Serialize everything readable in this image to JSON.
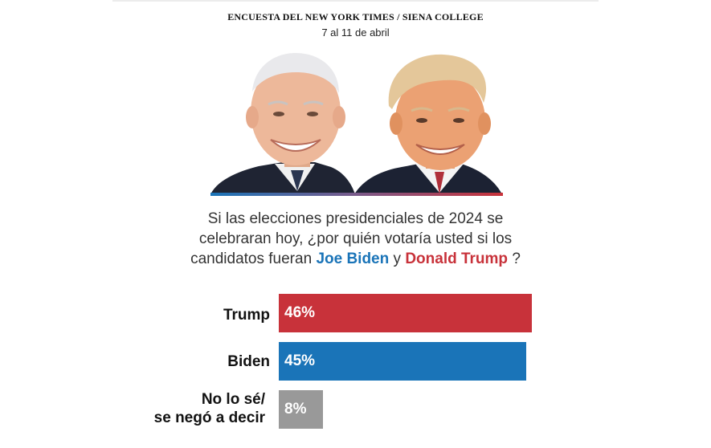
{
  "header": {
    "kicker": "ENCUESTA DEL NEW YORK TIMES / SIENA COLLEGE",
    "dates": "7 al 11 de abril"
  },
  "question": {
    "prefix": "Si las elecciones presidenciales de 2024 se celebraran hoy, ¿por quién votaría usted si los candidatos fueran ",
    "candidate_a": "Joe Biden",
    "joiner": " y ",
    "candidate_b": "Donald Trump",
    "suffix": " ?"
  },
  "colors": {
    "trump": "#c8323a",
    "biden": "#1a74b8",
    "other": "#999999"
  },
  "icons": [
    "biden-portrait",
    "trump-portrait"
  ],
  "chart_data": {
    "type": "bar",
    "orientation": "horizontal",
    "categories": [
      "Trump",
      "Biden",
      "No lo sé/ se negó a decir"
    ],
    "values": [
      46,
      45,
      8
    ],
    "value_labels": [
      "46%",
      "45%",
      "8%"
    ],
    "unit": "%",
    "xlim": [
      0,
      100
    ],
    "grid": false,
    "title": "",
    "xlabel": "",
    "ylabel": ""
  }
}
